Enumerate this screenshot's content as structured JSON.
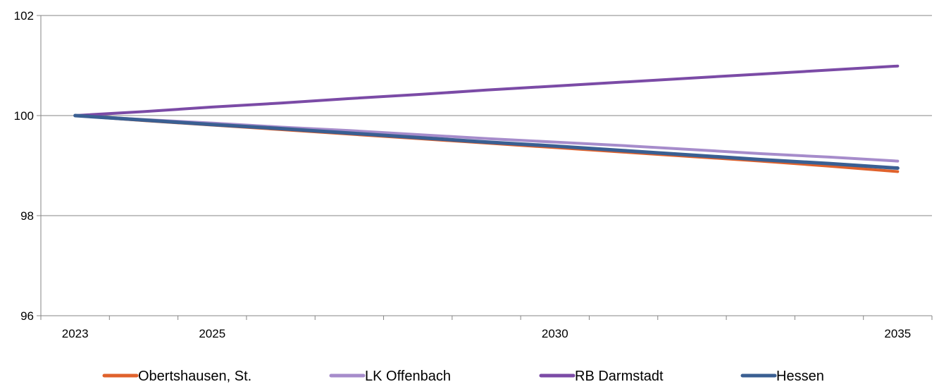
{
  "chart_data": {
    "type": "line",
    "title": "",
    "xlabel": "",
    "ylabel": "",
    "x": [
      2023,
      2024,
      2025,
      2026,
      2027,
      2028,
      2029,
      2030,
      2031,
      2032,
      2033,
      2034,
      2035
    ],
    "x_tick_labels": [
      "2023",
      "2025",
      "2030",
      "2035"
    ],
    "x_tick_label_values": [
      2023,
      2025,
      2030,
      2035
    ],
    "xlim": [
      2022.5,
      2035.5
    ],
    "ylim": [
      96,
      102
    ],
    "y_ticks": [
      96,
      98,
      100,
      102
    ],
    "y_tick_labels": [
      "96",
      "98",
      "100",
      "102"
    ],
    "grid": "horizontal",
    "legend_position": "bottom",
    "series": [
      {
        "name": "Obertshausen, St.",
        "color": "#E0622C",
        "values": [
          100,
          99.9,
          99.81,
          99.72,
          99.63,
          99.54,
          99.45,
          99.36,
          99.27,
          99.18,
          99.09,
          98.99,
          98.88
        ]
      },
      {
        "name": "LK Offenbach",
        "color": "#A68CCB",
        "values": [
          100,
          99.92,
          99.85,
          99.77,
          99.7,
          99.62,
          99.54,
          99.47,
          99.4,
          99.32,
          99.24,
          99.17,
          99.09
        ]
      },
      {
        "name": "RB Darmstadt",
        "color": "#7B4BA6",
        "values": [
          100,
          100.08,
          100.17,
          100.25,
          100.34,
          100.42,
          100.51,
          100.59,
          100.67,
          100.75,
          100.83,
          100.91,
          100.99
        ]
      },
      {
        "name": "Hessen",
        "color": "#3A5F92",
        "values": [
          100,
          99.91,
          99.82,
          99.74,
          99.65,
          99.56,
          99.47,
          99.39,
          99.3,
          99.21,
          99.12,
          99.04,
          98.95
        ]
      }
    ]
  }
}
